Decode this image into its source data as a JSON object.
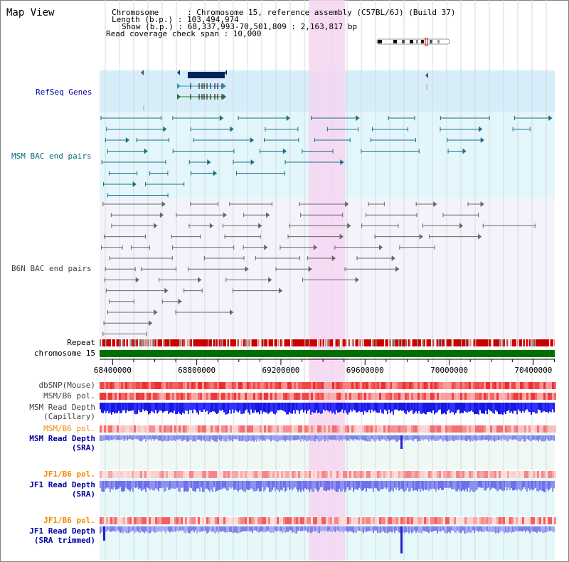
{
  "header": {
    "title": "Map View",
    "chromosome_row": "Chromosome      : Chromosome 15, reference assembly (C57BL/6J) (Build 37)",
    "length_row": "Length (b.p.) : 103,494,974",
    "show_row": "Show (b.p.) : 68,337,993-70,501,809 : 2,163,817 bp",
    "coverage_row": "Read coverage check span : 10,000"
  },
  "tracks": {
    "refseq": "RefSeq Genes",
    "msm_bac": "MSM BAC end pairs",
    "b6n_bac": "B6N BAC end pairs",
    "repeat": "Repeat",
    "chromosome": "chromosome 15",
    "dbsnp": "dbSNP(Mouse)",
    "msm_pol1": "MSM/B6 pol.",
    "msm_depth_cap_1": "MSM Read Depth",
    "msm_depth_cap_2": "(Capillary)",
    "msm_pol2": "MSM/B6 pol.",
    "msm_depth_sra_1": "MSM Read Depth",
    "msm_depth_sra_2": "(SRA)",
    "jf1_pol1": "JF1/B6 pol.",
    "jf1_depth_sra_1": "JF1 Read Depth",
    "jf1_depth_sra_2": "(SRA)",
    "jf1_pol2": "JF1/B6 pol.",
    "jf1_depth_trim_1": "JF1 Read Depth",
    "jf1_depth_trim_2": "(SRA trimmed)"
  },
  "axis": {
    "ticks": [
      "68400000",
      "68800000",
      "69200000",
      "69600000",
      "70000000",
      "70400000"
    ],
    "range": [
      68337993,
      70501809
    ]
  },
  "colors": {
    "refseq_bg": "#d6eefa",
    "msm_bg": "#e2f6fb",
    "b6n_bg": "#f3f4fb",
    "track_bg": "#eef9f6",
    "highlight": "#f5d6f1",
    "blue_label": "#0000a0",
    "teal_label": "#006c80",
    "gray_label": "#404040",
    "orange_label": "#f08c00",
    "chromosome": "#007000",
    "msm_feature": "#1a6c86",
    "b6n_feature": "#666666"
  }
}
